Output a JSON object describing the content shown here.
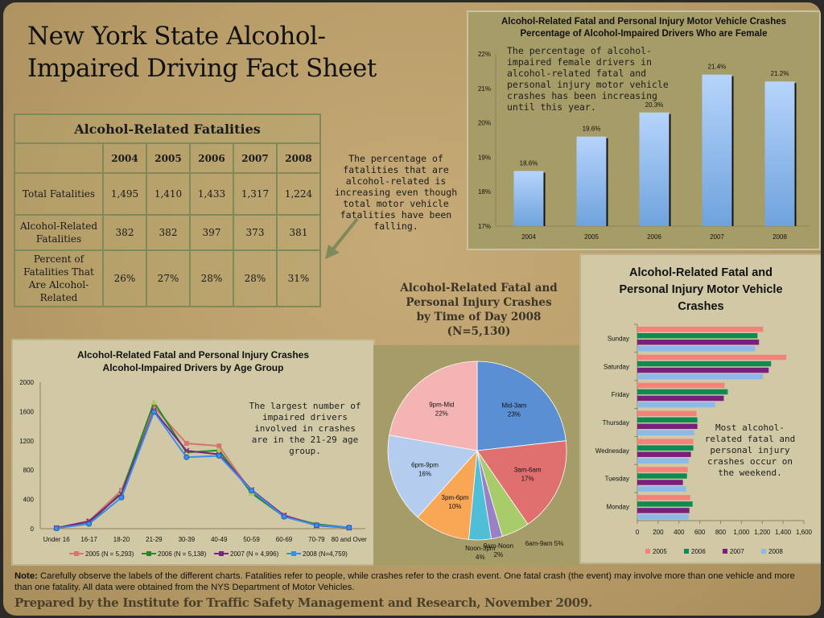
{
  "title": {
    "line1": "New York State Alcohol-",
    "line2": "Impaired Driving Fact Sheet"
  },
  "fatalities_table": {
    "caption": "Alcohol-Related Fatalities",
    "years": [
      "2004",
      "2005",
      "2006",
      "2007",
      "2008"
    ],
    "rows": [
      {
        "label": "Total Fatalities",
        "values": [
          "1,495",
          "1,410",
          "1,433",
          "1,317",
          "1,224"
        ]
      },
      {
        "label": "Alcohol-Related Fatalities",
        "values": [
          "382",
          "382",
          "397",
          "373",
          "381"
        ]
      },
      {
        "label": "Percent of Fatalities That Are Alcohol-Related",
        "values": [
          "26%",
          "27%",
          "28%",
          "28%",
          "31%"
        ]
      }
    ]
  },
  "table_note": "The percentage of fatalities that are alcohol-related is increasing even though total motor vehicle fatalities have been falling.",
  "female_chart_note": "The percentage of alcohol-impaired female drivers in alcohol-related fatal and personal injury motor vehicle crashes has been increasing until this year.",
  "age_chart_note": "The largest number of impaired drivers involved in crashes are in the 21-29 age group.",
  "weekday_chart_note": "Most alcohol-related fatal and personal injury crashes occur on the weekend.",
  "pie_title": {
    "line1": "Alcohol-Related Fatal and",
    "line2": "Personal Injury Crashes",
    "line3": "by Time of Day 2008",
    "line4": "(N=5,130)"
  },
  "footer": {
    "note_label": "Note:",
    "note_text": " Carefully observe the labels of the different charts.  Fatalities refer to people, while crashes refer to the crash event.  One fatal crash (the event) may involve more than one vehicle and more than one fatality.  All data were obtained from the NYS Department of Motor Vehicles.",
    "prepared_by": "Prepared by the Institute for Traffic Safety Management and Research, November 2009."
  },
  "chart_data": [
    {
      "id": "female_pct",
      "type": "bar",
      "title_line1": "Alcohol-Related Fatal and Personal Injury Motor Vehicle Crashes",
      "title_line2": "Percentage of Alcohol-Impaired Drivers Who are Female",
      "categories": [
        "2004",
        "2005",
        "2006",
        "2007",
        "2008"
      ],
      "values": [
        18.6,
        19.6,
        20.3,
        21.4,
        21.2
      ],
      "data_labels": [
        "18.6%",
        "19.6%",
        "20.3%",
        "21.4%",
        "21.2%"
      ],
      "ylim": [
        17,
        22
      ],
      "yticks": [
        "17%",
        "18%",
        "19%",
        "20%",
        "21%",
        "22%"
      ],
      "color": "#6fa3dd",
      "xlabel": "",
      "ylabel": ""
    },
    {
      "id": "age_group",
      "type": "line",
      "title_line1": "Alcohol-Related Fatal and Personal Injury Crashes",
      "title_line2": "Alcohol-Impaired Drivers by Age Group",
      "categories": [
        "Under 16",
        "16-17",
        "18-20",
        "21-29",
        "30-39",
        "40-49",
        "50-59",
        "60-69",
        "70-79",
        "80 and Over"
      ],
      "ylim": [
        0,
        2000
      ],
      "yticks": [
        "0",
        "400",
        "800",
        "1200",
        "1600",
        "2000"
      ],
      "legend": "bottom",
      "series": [
        {
          "name": "2005 (N = 5,293)",
          "color": "#d8746e",
          "marker": "square",
          "values": [
            10,
            105,
            525,
            1660,
            1165,
            1130,
            495,
            185,
            55,
            15
          ]
        },
        {
          "name": "2006 (N = 5,138)",
          "color": "#1f8a2a",
          "marker": "triangle",
          "values": [
            10,
            70,
            495,
            1725,
            1040,
            1070,
            485,
            165,
            62,
            15
          ]
        },
        {
          "name": "2007 (N = 4,996)",
          "color": "#7b2380",
          "marker": "x",
          "values": [
            10,
            100,
            475,
            1610,
            1065,
            1015,
            530,
            180,
            42,
            12
          ]
        },
        {
          "name": "2008 (N=4,759)",
          "color": "#3d8cf0",
          "marker": "circle",
          "values": [
            5,
            65,
            425,
            1595,
            975,
            995,
            520,
            163,
            47,
            15
          ]
        }
      ]
    },
    {
      "id": "time_of_day",
      "type": "pie",
      "title": "Alcohol-Related Fatal and Personal Injury Crashes by Time of Day 2008 (N=5,130)",
      "slices": [
        {
          "label": "Mid-3am",
          "value": 23,
          "pct": "23%",
          "color": "#5b8fd3"
        },
        {
          "label": "3am-6am",
          "value": 17,
          "pct": "17%",
          "color": "#e07070"
        },
        {
          "label": "6am-9am",
          "value": 5,
          "pct": "5%",
          "color": "#a9cc6b"
        },
        {
          "label": "9am-Noon",
          "value": 2,
          "pct": "2%",
          "color": "#9a80c4"
        },
        {
          "label": "Noon-3pm",
          "value": 4,
          "pct": "4%",
          "color": "#4fbfd8"
        },
        {
          "label": "3pm-6pm",
          "value": 10,
          "pct": "10%",
          "color": "#f9a655"
        },
        {
          "label": "6pm-9pm",
          "value": 16,
          "pct": "16%",
          "color": "#b4cdee"
        },
        {
          "label": "9pm-Mid",
          "value": 22,
          "pct": "22%",
          "color": "#f4b4b4"
        }
      ]
    },
    {
      "id": "day_of_week",
      "type": "bar",
      "orientation": "horizontal",
      "title": "Alcohol-Related Fatal and Personal Injury Motor Vehicle Crashes",
      "categories": [
        "Sunday",
        "Saturday",
        "Friday",
        "Thursday",
        "Wednesday",
        "Tuesday",
        "Monday"
      ],
      "xlim": [
        0,
        1600
      ],
      "xticks": [
        "0",
        "200",
        "400",
        "600",
        "800",
        "1,000",
        "1,200",
        "1,400",
        "1,600"
      ],
      "legend": "bottom",
      "series": [
        {
          "name": "2005",
          "color": "#f4827a",
          "values": [
            1208,
            1431,
            838,
            569,
            538,
            485,
            508
          ]
        },
        {
          "name": "2006",
          "color": "#0f8a52",
          "values": [
            1154,
            1285,
            869,
            577,
            538,
            477,
            531
          ]
        },
        {
          "name": "2007",
          "color": "#7b1f7c",
          "values": [
            1169,
            1262,
            831,
            577,
            515,
            438,
            500
          ]
        },
        {
          "name": "2008",
          "color": "#8ab9ea",
          "values": [
            1131,
            1208,
            746,
            546,
            492,
            469,
            492
          ]
        }
      ]
    }
  ]
}
